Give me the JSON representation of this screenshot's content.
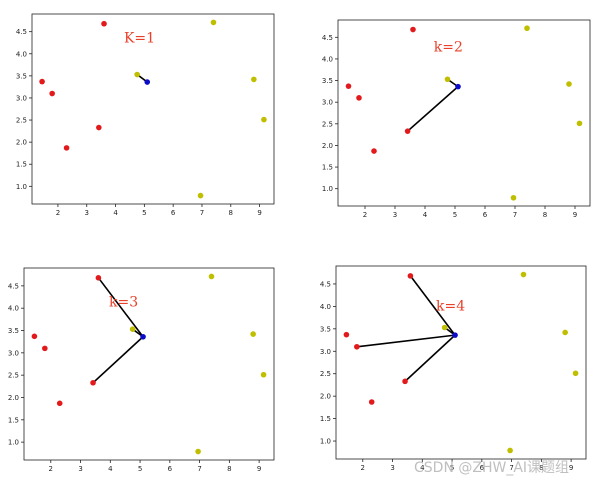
{
  "colors": {
    "red": "#e31a1c",
    "yellow": "#bfbf00",
    "blue": "#0b0bc8",
    "line": "#000000"
  },
  "watermark": "CSDN @ZHW_AI课题组",
  "chart_data": [
    {
      "type": "scatter",
      "annotation": "K=1",
      "xlim": [
        1.1,
        9.5
      ],
      "ylim": [
        0.6,
        4.9
      ],
      "xticks": [
        2,
        3,
        4,
        5,
        6,
        7,
        8,
        9
      ],
      "yticks": [
        1.0,
        1.5,
        2.0,
        2.5,
        3.0,
        3.5,
        4.0,
        4.5
      ],
      "grid": false,
      "points": [
        {
          "x": 1.45,
          "y": 3.37,
          "color": "red"
        },
        {
          "x": 1.8,
          "y": 3.1,
          "color": "red"
        },
        {
          "x": 2.3,
          "y": 1.87,
          "color": "red"
        },
        {
          "x": 3.42,
          "y": 2.33,
          "color": "red"
        },
        {
          "x": 3.6,
          "y": 4.68,
          "color": "red"
        },
        {
          "x": 4.75,
          "y": 3.53,
          "color": "yellow"
        },
        {
          "x": 6.95,
          "y": 0.79,
          "color": "yellow"
        },
        {
          "x": 7.4,
          "y": 4.71,
          "color": "yellow"
        },
        {
          "x": 8.8,
          "y": 3.42,
          "color": "yellow"
        },
        {
          "x": 9.15,
          "y": 2.51,
          "color": "yellow"
        },
        {
          "x": 5.1,
          "y": 3.36,
          "color": "blue"
        }
      ],
      "query": {
        "x": 5.1,
        "y": 3.36
      },
      "neighbors": [
        {
          "x": 4.75,
          "y": 3.53
        }
      ]
    },
    {
      "type": "scatter",
      "annotation": "k=2",
      "xlim": [
        1.1,
        9.5
      ],
      "ylim": [
        0.6,
        4.9
      ],
      "xticks": [
        2,
        3,
        4,
        5,
        6,
        7,
        8,
        9
      ],
      "yticks": [
        1.0,
        1.5,
        2.0,
        2.5,
        3.0,
        3.5,
        4.0,
        4.5
      ],
      "grid": false,
      "points": [
        {
          "x": 1.45,
          "y": 3.37,
          "color": "red"
        },
        {
          "x": 1.8,
          "y": 3.1,
          "color": "red"
        },
        {
          "x": 2.3,
          "y": 1.87,
          "color": "red"
        },
        {
          "x": 3.42,
          "y": 2.33,
          "color": "red"
        },
        {
          "x": 3.6,
          "y": 4.68,
          "color": "red"
        },
        {
          "x": 4.75,
          "y": 3.53,
          "color": "yellow"
        },
        {
          "x": 6.95,
          "y": 0.79,
          "color": "yellow"
        },
        {
          "x": 7.4,
          "y": 4.71,
          "color": "yellow"
        },
        {
          "x": 8.8,
          "y": 3.42,
          "color": "yellow"
        },
        {
          "x": 9.15,
          "y": 2.51,
          "color": "yellow"
        },
        {
          "x": 5.1,
          "y": 3.36,
          "color": "blue"
        }
      ],
      "query": {
        "x": 5.1,
        "y": 3.36
      },
      "neighbors": [
        {
          "x": 4.75,
          "y": 3.53
        },
        {
          "x": 3.42,
          "y": 2.33
        }
      ]
    },
    {
      "type": "scatter",
      "annotation": "k=3",
      "xlim": [
        1.1,
        9.5
      ],
      "ylim": [
        0.6,
        4.9
      ],
      "xticks": [
        2,
        3,
        4,
        5,
        6,
        7,
        8,
        9
      ],
      "yticks": [
        1.0,
        1.5,
        2.0,
        2.5,
        3.0,
        3.5,
        4.0,
        4.5
      ],
      "grid": false,
      "points": [
        {
          "x": 1.45,
          "y": 3.37,
          "color": "red"
        },
        {
          "x": 1.8,
          "y": 3.1,
          "color": "red"
        },
        {
          "x": 2.3,
          "y": 1.87,
          "color": "red"
        },
        {
          "x": 3.42,
          "y": 2.33,
          "color": "red"
        },
        {
          "x": 3.6,
          "y": 4.68,
          "color": "red"
        },
        {
          "x": 4.75,
          "y": 3.53,
          "color": "yellow"
        },
        {
          "x": 6.95,
          "y": 0.79,
          "color": "yellow"
        },
        {
          "x": 7.4,
          "y": 4.71,
          "color": "yellow"
        },
        {
          "x": 8.8,
          "y": 3.42,
          "color": "yellow"
        },
        {
          "x": 9.15,
          "y": 2.51,
          "color": "yellow"
        },
        {
          "x": 5.1,
          "y": 3.36,
          "color": "blue"
        }
      ],
      "query": {
        "x": 5.1,
        "y": 3.36
      },
      "neighbors": [
        {
          "x": 4.75,
          "y": 3.53
        },
        {
          "x": 3.42,
          "y": 2.33
        },
        {
          "x": 3.6,
          "y": 4.68
        }
      ]
    },
    {
      "type": "scatter",
      "annotation": "k=4",
      "xlim": [
        1.1,
        9.5
      ],
      "ylim": [
        0.6,
        4.9
      ],
      "xticks": [
        2,
        3,
        4,
        5,
        6,
        7,
        8,
        9
      ],
      "yticks": [
        1.0,
        1.5,
        2.0,
        2.5,
        3.0,
        3.5,
        4.0,
        4.5
      ],
      "grid": false,
      "points": [
        {
          "x": 1.45,
          "y": 3.37,
          "color": "red"
        },
        {
          "x": 1.8,
          "y": 3.1,
          "color": "red"
        },
        {
          "x": 2.3,
          "y": 1.87,
          "color": "red"
        },
        {
          "x": 3.42,
          "y": 2.33,
          "color": "red"
        },
        {
          "x": 3.6,
          "y": 4.68,
          "color": "red"
        },
        {
          "x": 4.75,
          "y": 3.53,
          "color": "yellow"
        },
        {
          "x": 6.95,
          "y": 0.79,
          "color": "yellow"
        },
        {
          "x": 7.4,
          "y": 4.71,
          "color": "yellow"
        },
        {
          "x": 8.8,
          "y": 3.42,
          "color": "yellow"
        },
        {
          "x": 9.15,
          "y": 2.51,
          "color": "yellow"
        },
        {
          "x": 5.1,
          "y": 3.36,
          "color": "blue"
        }
      ],
      "query": {
        "x": 5.1,
        "y": 3.36
      },
      "neighbors": [
        {
          "x": 4.75,
          "y": 3.53
        },
        {
          "x": 3.42,
          "y": 2.33
        },
        {
          "x": 3.6,
          "y": 4.68
        },
        {
          "x": 1.8,
          "y": 3.1
        }
      ]
    }
  ]
}
